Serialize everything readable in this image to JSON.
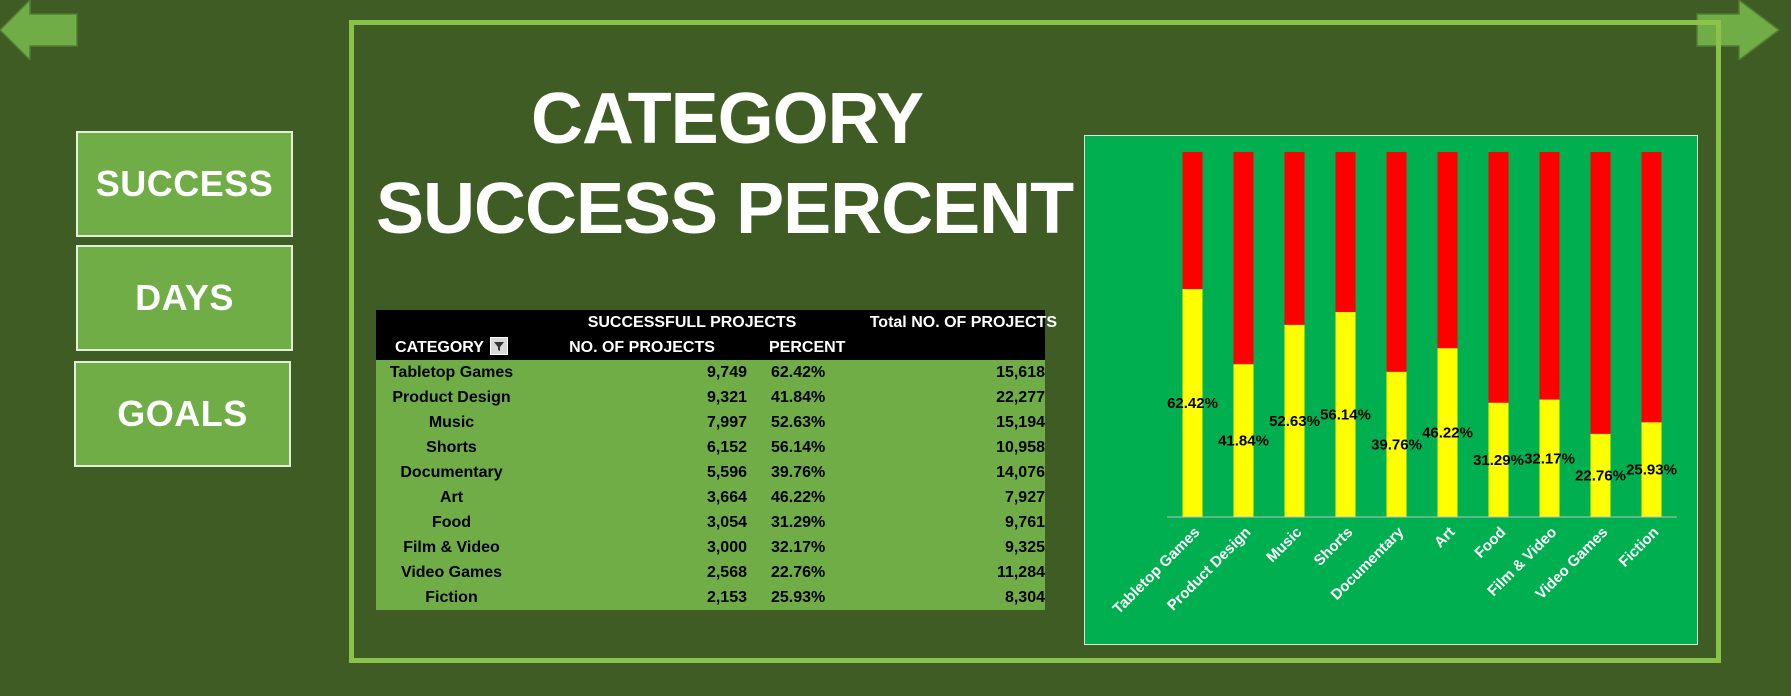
{
  "nav": {
    "success": "SUCCESS",
    "days": "DAYS",
    "goals": "GOALS"
  },
  "title": {
    "line1": "CATEGORY",
    "line2": "SUCCESS PERCENT"
  },
  "table": {
    "header_row1": {
      "successful": "SUCCESSFULL PROJECTS",
      "total": "Total NO. OF PROJECTS"
    },
    "header_row2": {
      "category": "CATEGORY",
      "num_projects": "NO. OF PROJECTS",
      "percent": "PERCENT"
    },
    "rows": [
      {
        "category": "Tabletop Games",
        "successful": "9,749",
        "percent": "62.42%",
        "total": "15,618"
      },
      {
        "category": "Product Design",
        "successful": "9,321",
        "percent": "41.84%",
        "total": "22,277"
      },
      {
        "category": "Music",
        "successful": "7,997",
        "percent": "52.63%",
        "total": "15,194"
      },
      {
        "category": "Shorts",
        "successful": "6,152",
        "percent": "56.14%",
        "total": "10,958"
      },
      {
        "category": "Documentary",
        "successful": "5,596",
        "percent": "39.76%",
        "total": "14,076"
      },
      {
        "category": "Art",
        "successful": "3,664",
        "percent": "46.22%",
        "total": "7,927"
      },
      {
        "category": "Food",
        "successful": "3,054",
        "percent": "31.29%",
        "total": "9,761"
      },
      {
        "category": "Film & Video",
        "successful": "3,000",
        "percent": "32.17%",
        "total": "9,325"
      },
      {
        "category": "Video Games",
        "successful": "2,568",
        "percent": "22.76%",
        "total": "11,284"
      },
      {
        "category": "Fiction",
        "successful": "2,153",
        "percent": "25.93%",
        "total": "8,304"
      }
    ]
  },
  "colors": {
    "background": "#3e5c23",
    "frame": "#8bc34a",
    "button": "#70ad47",
    "chart_bg": "#00b050",
    "success": "#ffff00",
    "remaining": "#ff0000"
  },
  "icons": {
    "back": "arrow-left-icon",
    "forward": "arrow-right-icon",
    "filter": "filter-icon"
  },
  "chart_data": {
    "type": "bar",
    "stacked": true,
    "categories": [
      "Tabletop Games",
      "Product Design",
      "Music",
      "Shorts",
      "Documentary",
      "Art",
      "Food",
      "Film & Video",
      "Video Games",
      "Fiction"
    ],
    "series": [
      {
        "values": [
          62.42,
          41.84,
          52.63,
          56.14,
          39.76,
          46.22,
          31.29,
          32.17,
          22.76,
          25.93
        ]
      },
      {
        "values": [
          37.58,
          58.16,
          47.37,
          43.86,
          60.24,
          53.78,
          68.71,
          67.83,
          77.24,
          74.07
        ]
      }
    ],
    "data_labels": [
      "62.42%",
      "41.84%",
      "52.63%",
      "56.14%",
      "39.76%",
      "46.22%",
      "31.29%",
      "32.17%",
      "22.76%",
      "25.93%"
    ],
    "ylim": [
      0,
      100
    ],
    "grid": false,
    "legend": "none"
  }
}
